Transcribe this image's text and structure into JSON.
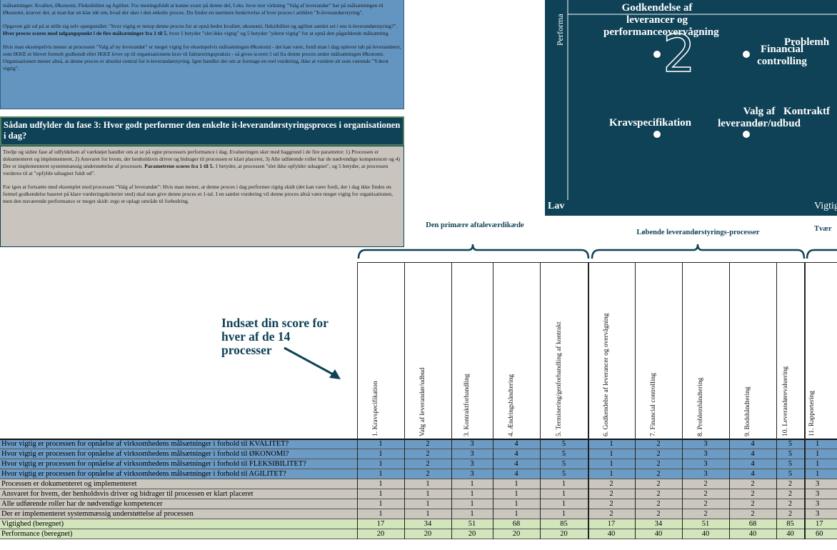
{
  "intro": {
    "paragraphs": [
      [
        "målsætninger: Kvalitet, Økonomi, Fleksibilitet og Agilitet. For meningsfuldt at kunne svare på denne del, f.eks. hvor stor virkning \"Valg af leverandør\" har på målsætningen til Økonomi, kræver det, at man har en klar idé om, hvad der sker i den enkelte proces. Du finder en nærmere beskrivelse af hver proces i artiklen \"It-leverandørstyring\"."
      ],
      [
        "Opgaven går ud på at stille sig selv spørgsmålet: \"hvor vigtig er netop denne proces for at opnå bedre kvalitet, økonomi, fleksibilitet og agilitet samlet set i ens it-leverandørstyring?\". ",
        {
          "bold": "Hver proces scores med udgangspunkt i de fire målsætninger fra 1 til 5"
        },
        ", hvor 1 betyder \"slet ikke vigtig\" og 5 betyder \"yderst vigtig\" for at opnå den pågældende målsætning."
      ],
      [
        "Hvis man eksempelvis mener at processen \"Valg af ny leverandør\" er meget vigtig for eksempelvis målsætningen Økonomi - det kan være, fordi man i dag oplever tab på leverandører, som IKKE er blevet formelt godkendt eller IKKE lever op til organisationens krav til faktureringspraksis - så gives scoren 5 ud fra denne proces under målsætningen Økonomi. Organisationen mener altså, at denne proces er absolut central for it-leverandørstyring. Igen handler det om at foretage en reel vurdering, ikke at vurdere alt som værende \"Yderst vigtig\"."
      ]
    ]
  },
  "phase3": {
    "heading": "Sådan udfylder du fase 3: Hvor godt performer den enkelte it-leverandørstyringsproces i organisationen i dag?",
    "paragraphs": [
      [
        "Tredje og sidste fase af udfyldelsen af værktøjet handler om at se på egne processers performance i dag. Evalueringen sker med baggrund i de fire parametre: 1) Processen er dokumenteret og implementeret, 2) Ansvaret for hvem, der henholdsvis driver og bidrager til processen er klart placeret, 3) Alle udførende roller har de nødvendige kompetencer og 4) Der er implementeret systemmæssig understøttelse af processen. ",
        {
          "bold": "Parametrene scores fra 1 til 5."
        },
        " 1 betyder, at processen \"slet ikke opfylder udsagnet\", og 5 betyder, at processen vurderes til at \"opfylde udsagnet fuldt ud\"."
      ],
      [
        "For igen at fortsætte med eksemplet med processen \"Valg af leverandør\": Hvis man mener, at denne proces i dag performer rigtig skidt (det kan være fordi, der i dag ikke findes en formel godkendelse baseret på klare vurderingskriterier sted) skal man give denne proces et 1-tal. I en samlet vurdering vil denne proces altså være meget vigtig for organisationen, men den nuværende performance er meget skidt: ergo et oplagt område til forbedring."
      ]
    ]
  },
  "matrix": {
    "y_axis": "Performa",
    "x_low": "Lav",
    "x_high": "Vigtig",
    "quadrant": "2",
    "labels": [
      "Godkendelse af leverancer og performanceovervågning",
      "Financial controlling",
      "Problemh",
      "Kravspecifikation",
      "Valg af leverandør/udbud",
      "Kontraktf"
    ]
  },
  "table": {
    "annotation": "Indsæt din score for hver af de 14 processer",
    "groups": [
      "Den primære aftaleværdikæde",
      "Løbende leverandørstyrings-processer",
      "Tvær"
    ],
    "columns": [
      "1. Kravspecifikation",
      "Valg af leverandør/udbud",
      "3. Kontraktforhandling",
      "4. Ændringshåndtering",
      "5. Terminering/genforhandling af kontrakt",
      "6. Godkendelse af leverancer og overvågning",
      "7. Financial controlling",
      "8. Problemhåndtering",
      "9. Bodshåndtering",
      "10. Leverandørevaluering",
      "11. Rapportering"
    ],
    "rows": [
      {
        "label": "Hvor vigtig er processen for opnåelse af virksomhedens målsætninger i forhold til KVALITET?",
        "values": [
          1,
          2,
          3,
          4,
          5,
          1,
          2,
          3,
          4,
          5,
          1
        ]
      },
      {
        "label": "Hvor vigtig er processen for opnåelse af virksomhedens målsætninger i forhold til ØKONOMI?",
        "values": [
          1,
          2,
          3,
          4,
          5,
          1,
          2,
          3,
          4,
          5,
          1
        ]
      },
      {
        "label": "Hvor vigtig er processen for opnåelse af virksomhedens målsætninger i forhold til FLEKSIBILITET?",
        "values": [
          1,
          2,
          3,
          4,
          5,
          1,
          2,
          3,
          4,
          5,
          1
        ]
      },
      {
        "label": "Hvor vigtig er processen for opnåelse af virksomhedens målsætninger i forhold til AGILITET?",
        "values": [
          1,
          2,
          3,
          4,
          5,
          1,
          2,
          3,
          4,
          5,
          1
        ]
      },
      {
        "label": "Processen er dokumenteret og implementeret",
        "values": [
          1,
          1,
          1,
          1,
          1,
          2,
          2,
          2,
          2,
          2,
          3
        ]
      },
      {
        "label": "Ansvaret for hvem, der henholdsvis driver og bidrager til processen er klart placeret",
        "values": [
          1,
          1,
          1,
          1,
          1,
          2,
          2,
          2,
          2,
          2,
          3
        ]
      },
      {
        "label": "Alle udførende roller har de nødvendige kompetencer",
        "values": [
          1,
          1,
          1,
          1,
          1,
          2,
          2,
          2,
          2,
          2,
          3
        ]
      },
      {
        "label": "Der er implementeret systemmæssig understøttelse af processen",
        "values": [
          1,
          1,
          1,
          1,
          1,
          2,
          2,
          2,
          2,
          2,
          3
        ]
      },
      {
        "label": "Vigtighed (beregnet)",
        "values": [
          17,
          34,
          51,
          68,
          85,
          17,
          34,
          51,
          68,
          85,
          17
        ]
      },
      {
        "label": "Performance (beregnet)",
        "values": [
          20,
          20,
          20,
          20,
          20,
          40,
          40,
          40,
          40,
          40,
          60
        ]
      }
    ]
  }
}
